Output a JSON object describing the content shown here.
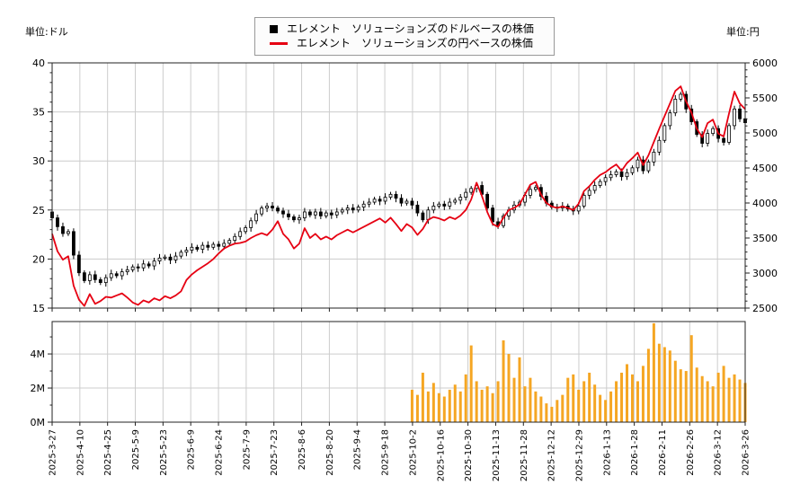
{
  "units": {
    "left": "単位:ドル",
    "right": "単位:円"
  },
  "legend": {
    "items": [
      {
        "marker": "black-square",
        "color": "#000000",
        "label": "エレメント　ソリューションズのドルベースの株価"
      },
      {
        "marker": "red-line",
        "color": "#e60012",
        "label": "エレメント　ソリューションズの円ベースの株価"
      }
    ]
  },
  "chart_data": {
    "type": "candlestick",
    "title": "",
    "x_axis": {
      "tick_labels": [
        "2025-3-27",
        "2025-4-10",
        "2025-4-25",
        "2025-5-9",
        "2025-5-23",
        "2025-6-9",
        "2025-6-24",
        "2025-7-9",
        "2025-7-23",
        "2025-8-6",
        "2025-8-20",
        "2025-9-4",
        "2025-9-18",
        "2025-10-2",
        "2025-10-16",
        "2025-10-30",
        "2025-11-13",
        "2025-11-28",
        "2025-12-12",
        "2025-12-29",
        "2026-1-13",
        "2026-1-28",
        "2026-2-11",
        "2026-2-26",
        "2026-3-12",
        "2026-3-26"
      ]
    },
    "price_panel": {
      "left_axis": {
        "unit": "単位:ドル",
        "ticks": [
          40,
          35,
          30,
          25,
          20,
          15
        ],
        "min": 15,
        "max": 40,
        "minor_step": 1
      },
      "right_axis": {
        "unit": "単位:円",
        "ticks": [
          6000,
          5500,
          5000,
          4500,
          4000,
          3500,
          3000,
          2500
        ],
        "min": 2500,
        "max": 6000,
        "minor_step": 100
      },
      "grid": true,
      "series": [
        {
          "name": "エレメント　ソリューションズのドルベースの株価",
          "type": "candlestick",
          "axis": "left",
          "color": "#000000",
          "closes": [
            24.2,
            23.3,
            22.6,
            22.8,
            20.4,
            18.6,
            17.8,
            18.4,
            17.9,
            17.6,
            18.1,
            18.5,
            18.3,
            18.7,
            18.9,
            19.2,
            19.1,
            19.5,
            19.3,
            19.8,
            20.1,
            20.2,
            19.9,
            20.3,
            20.7,
            20.9,
            21.2,
            21.0,
            21.4,
            21.2,
            21.5,
            21.3,
            21.6,
            21.9,
            22.3,
            22.8,
            23.2,
            23.9,
            24.6,
            25.2,
            25.4,
            25.2,
            24.9,
            24.6,
            24.3,
            24.0,
            24.2,
            24.8,
            24.5,
            24.8,
            24.4,
            24.7,
            24.5,
            24.8,
            25.0,
            25.2,
            25.0,
            25.3,
            25.6,
            25.8,
            26.1,
            25.9,
            26.3,
            26.6,
            26.2,
            25.7,
            25.9,
            25.5,
            24.7,
            24.0,
            25.0,
            25.4,
            25.6,
            25.4,
            25.8,
            26.0,
            26.3,
            26.8,
            27.2,
            27.5,
            26.6,
            25.2,
            23.8,
            23.4,
            24.4,
            25.0,
            25.5,
            25.8,
            26.5,
            27.1,
            27.3,
            26.4,
            25.7,
            25.3,
            25.2,
            25.4,
            25.1,
            24.9,
            25.4,
            26.5,
            27.0,
            27.5,
            27.9,
            28.3,
            28.6,
            28.9,
            28.4,
            28.8,
            29.3,
            30.1,
            29.0,
            29.9,
            30.9,
            32.1,
            33.6,
            34.9,
            36.3,
            36.8,
            35.3,
            34.0,
            32.7,
            31.8,
            32.8,
            33.3,
            32.3,
            31.9,
            33.6,
            35.3,
            34.3,
            33.9
          ]
        },
        {
          "name": "エレメント　ソリューションズの円ベースの株価",
          "type": "line",
          "axis": "right",
          "color": "#e60012",
          "values": [
            3560,
            3310,
            3190,
            3240,
            2820,
            2620,
            2530,
            2700,
            2560,
            2600,
            2660,
            2650,
            2680,
            2710,
            2650,
            2580,
            2545,
            2610,
            2580,
            2640,
            2610,
            2670,
            2640,
            2680,
            2740,
            2900,
            2980,
            3040,
            3090,
            3140,
            3200,
            3280,
            3350,
            3390,
            3420,
            3430,
            3450,
            3500,
            3540,
            3570,
            3540,
            3620,
            3740,
            3560,
            3480,
            3350,
            3420,
            3640,
            3500,
            3560,
            3480,
            3520,
            3480,
            3540,
            3580,
            3620,
            3580,
            3620,
            3660,
            3700,
            3740,
            3780,
            3720,
            3790,
            3700,
            3600,
            3700,
            3650,
            3545,
            3630,
            3760,
            3800,
            3780,
            3750,
            3800,
            3770,
            3820,
            3900,
            4050,
            4290,
            4100,
            3870,
            3700,
            3660,
            3790,
            3900,
            3930,
            3980,
            4120,
            4260,
            4300,
            4120,
            4000,
            3950,
            3930,
            3950,
            3930,
            3900,
            3990,
            4170,
            4240,
            4330,
            4400,
            4440,
            4500,
            4550,
            4460,
            4570,
            4640,
            4720,
            4540,
            4680,
            4870,
            5060,
            5240,
            5420,
            5600,
            5665,
            5450,
            5290,
            5060,
            4940,
            5140,
            5190,
            4990,
            4950,
            5280,
            5590,
            5420,
            5340
          ]
        }
      ]
    },
    "volume_panel": {
      "axis": {
        "tick_labels": [
          "4M",
          "2M",
          "0M"
        ],
        "tick_values": [
          4,
          2,
          0
        ],
        "min": 0,
        "max": 5.9,
        "minor_step": 1
      },
      "grid_values": [
        2,
        4
      ],
      "series": {
        "name": "volume",
        "type": "bar",
        "color": "#f5a623",
        "start_index": 67,
        "values_millions": [
          1.9,
          1.6,
          2.9,
          1.8,
          2.3,
          1.7,
          1.5,
          1.9,
          2.2,
          1.8,
          2.8,
          4.5,
          2.4,
          1.9,
          2.1,
          1.7,
          2.4,
          4.8,
          4.0,
          2.6,
          3.8,
          2.1,
          2.6,
          1.8,
          1.5,
          1.1,
          0.9,
          1.3,
          1.6,
          2.6,
          2.8,
          1.9,
          2.4,
          2.9,
          2.2,
          1.6,
          1.3,
          1.8,
          2.4,
          2.9,
          3.4,
          2.8,
          2.4,
          3.3,
          4.3,
          5.8,
          4.6,
          4.4,
          4.2,
          3.6,
          3.1,
          3.0,
          5.1,
          3.2,
          2.7,
          2.4,
          2.1,
          2.9,
          3.3,
          2.6,
          2.8,
          2.5,
          2.3
        ]
      }
    },
    "style": {
      "grid_color": "#cccccc",
      "spine_color": "#222222",
      "up_candle_fill": "#ffffff",
      "down_candle_fill": "#000000"
    }
  }
}
